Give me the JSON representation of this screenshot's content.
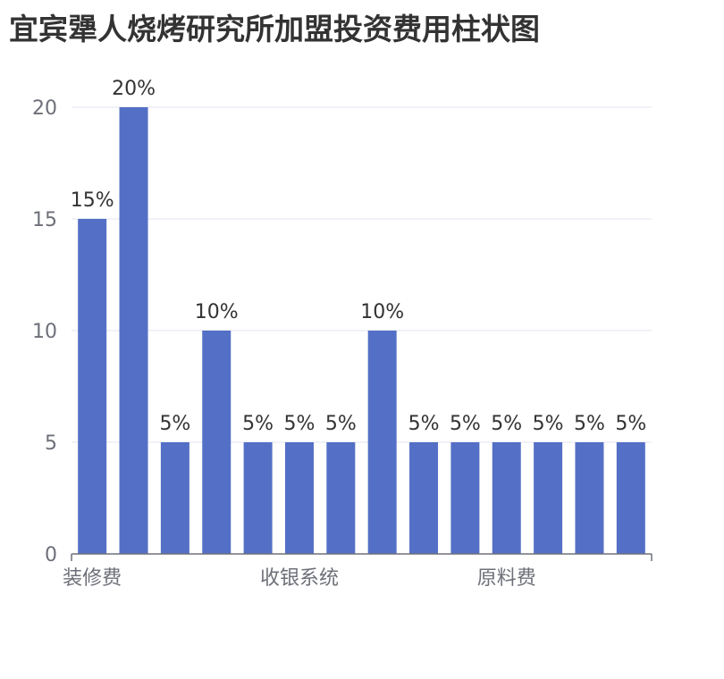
{
  "chart_data": {
    "type": "bar",
    "title": "宜宾犟人烧烤研究所加盟投资费用柱状图",
    "categories": [
      "装修费",
      "",
      "",
      "",
      "",
      "收银系统",
      "",
      "",
      "",
      "",
      "原料费",
      "",
      "",
      ""
    ],
    "values": [
      15,
      20,
      5,
      10,
      5,
      5,
      5,
      10,
      5,
      5,
      5,
      5,
      5,
      5
    ],
    "data_labels": [
      "15%",
      "20%",
      "5%",
      "10%",
      "5%",
      "5%",
      "5%",
      "10%",
      "5%",
      "5%",
      "5%",
      "5%",
      "5%",
      "5%"
    ],
    "ylim": [
      0,
      20
    ],
    "yticks": [
      0,
      5,
      10,
      15,
      20
    ],
    "xlabel": "",
    "ylabel": "",
    "grid": true,
    "colors": {
      "bar": "#5470c6",
      "grid": "#e0e6f1",
      "axis": "#6e7079"
    }
  }
}
